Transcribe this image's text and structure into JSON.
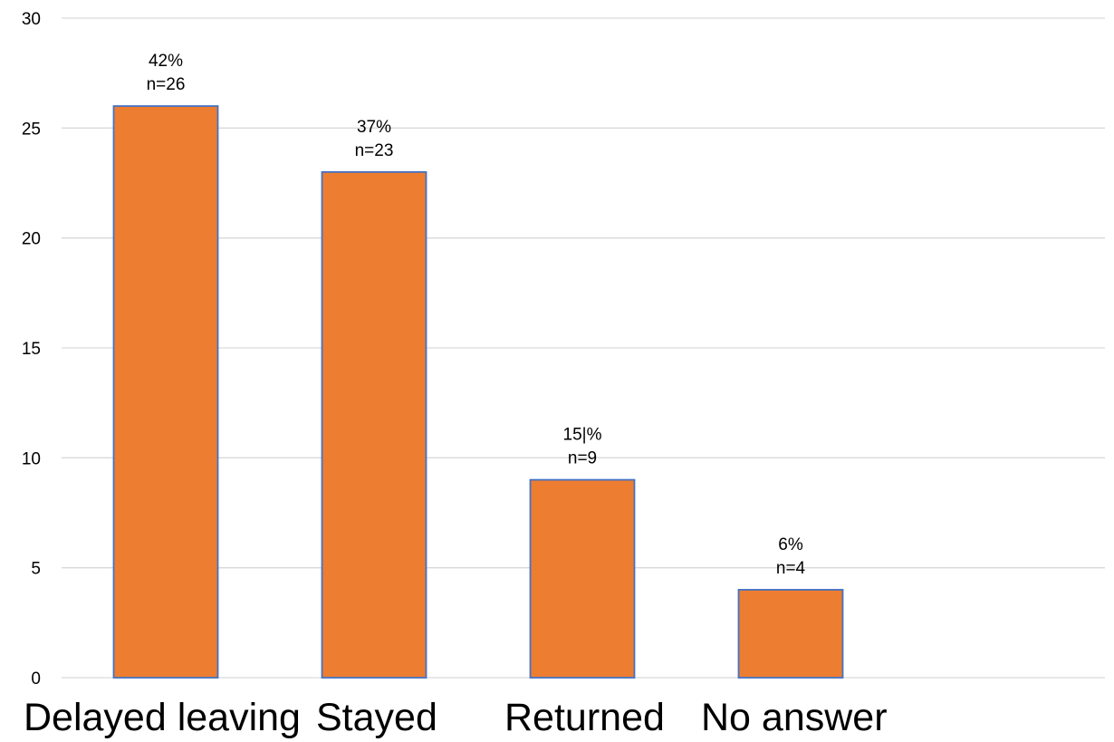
{
  "chart_data": {
    "type": "bar",
    "title": "",
    "xlabel": "",
    "ylabel": "",
    "categories": [
      "Delayed leaving",
      "Stayed",
      "Returned",
      "No answer"
    ],
    "values": [
      26,
      23,
      9,
      4
    ],
    "data_labels": [
      {
        "pct": "42%",
        "n": "n=26"
      },
      {
        "pct": "37%",
        "n": "n=23"
      },
      {
        "pct": "15|%",
        "n": "n=9"
      },
      {
        "pct": "6%",
        "n": "n=4"
      }
    ],
    "ylim": [
      0,
      30
    ],
    "yticks": [
      "0",
      "5",
      "10",
      "15",
      "20",
      "25",
      "30"
    ],
    "grid": true,
    "legend": "none",
    "colors": {
      "bar_fill": "#ED7D31",
      "bar_stroke": "#4472C4",
      "grid": "#D9D9D9"
    }
  }
}
